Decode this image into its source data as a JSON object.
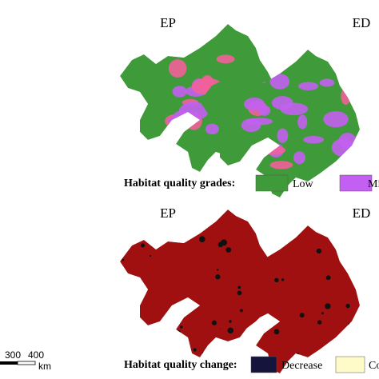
{
  "grades_row": {
    "panels": [
      {
        "title": "EP"
      },
      {
        "title": "ED"
      }
    ],
    "legend": {
      "title": "Habitat quality grades:",
      "items": [
        {
          "label": "Low",
          "color": "#3f9b3a"
        },
        {
          "label": "Mi",
          "color": "#c35ff2"
        }
      ]
    }
  },
  "change_row": {
    "panels": [
      {
        "title": "EP"
      },
      {
        "title": "ED"
      }
    ],
    "legend": {
      "title": "Habitat quality change:",
      "items": [
        {
          "label": "Decrease",
          "color": "#14143c"
        },
        {
          "label": "Con",
          "color": "#fffbc8"
        }
      ]
    }
  },
  "scale_bar": {
    "labels": [
      "300",
      "400"
    ],
    "unit": "km"
  }
}
